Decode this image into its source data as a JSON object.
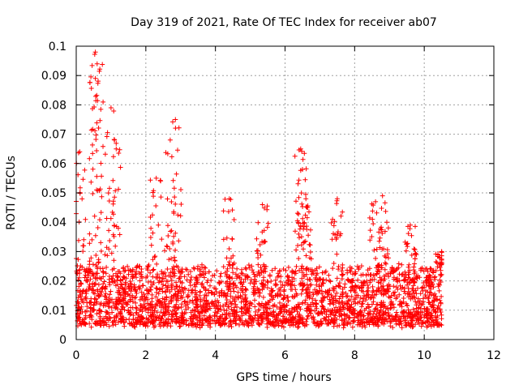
{
  "chart_data": {
    "type": "scatter",
    "title": "Day 319 of 2021, Rate Of TEC Index for receiver ab07",
    "xlabel": "GPS time / hours",
    "ylabel": "ROTI / TECUs",
    "xlim": [
      0,
      12
    ],
    "ylim": [
      0,
      0.1
    ],
    "x_ticks": [
      "0",
      "2",
      "4",
      "6",
      "8",
      "10",
      "12"
    ],
    "y_ticks": [
      "0",
      "0.01",
      "0.02",
      "0.03",
      "0.04",
      "0.05",
      "0.06",
      "0.07",
      "0.08",
      "0.09",
      "0.1"
    ],
    "grid": true,
    "marker": "plus",
    "color": "#ff0000",
    "series": [
      {
        "name": "ROTI",
        "x_range": [
          0,
          10.5
        ],
        "typical_band": [
          0.005,
          0.025
        ],
        "notable_peaks": [
          {
            "x": 0.1,
            "y": 0.064
          },
          {
            "x": 0.55,
            "y": 0.098
          },
          {
            "x": 0.6,
            "y": 0.094
          },
          {
            "x": 0.55,
            "y": 0.089
          },
          {
            "x": 1.0,
            "y": 0.079
          },
          {
            "x": 1.1,
            "y": 0.068
          },
          {
            "x": 2.3,
            "y": 0.055
          },
          {
            "x": 2.85,
            "y": 0.075
          },
          {
            "x": 2.7,
            "y": 0.068
          },
          {
            "x": 4.4,
            "y": 0.048
          },
          {
            "x": 5.35,
            "y": 0.046
          },
          {
            "x": 6.45,
            "y": 0.065
          },
          {
            "x": 6.5,
            "y": 0.058
          },
          {
            "x": 6.6,
            "y": 0.048
          },
          {
            "x": 7.5,
            "y": 0.048
          },
          {
            "x": 8.6,
            "y": 0.047
          },
          {
            "x": 8.8,
            "y": 0.049
          },
          {
            "x": 9.6,
            "y": 0.039
          },
          {
            "x": 10.5,
            "y": 0.03
          }
        ]
      }
    ]
  }
}
